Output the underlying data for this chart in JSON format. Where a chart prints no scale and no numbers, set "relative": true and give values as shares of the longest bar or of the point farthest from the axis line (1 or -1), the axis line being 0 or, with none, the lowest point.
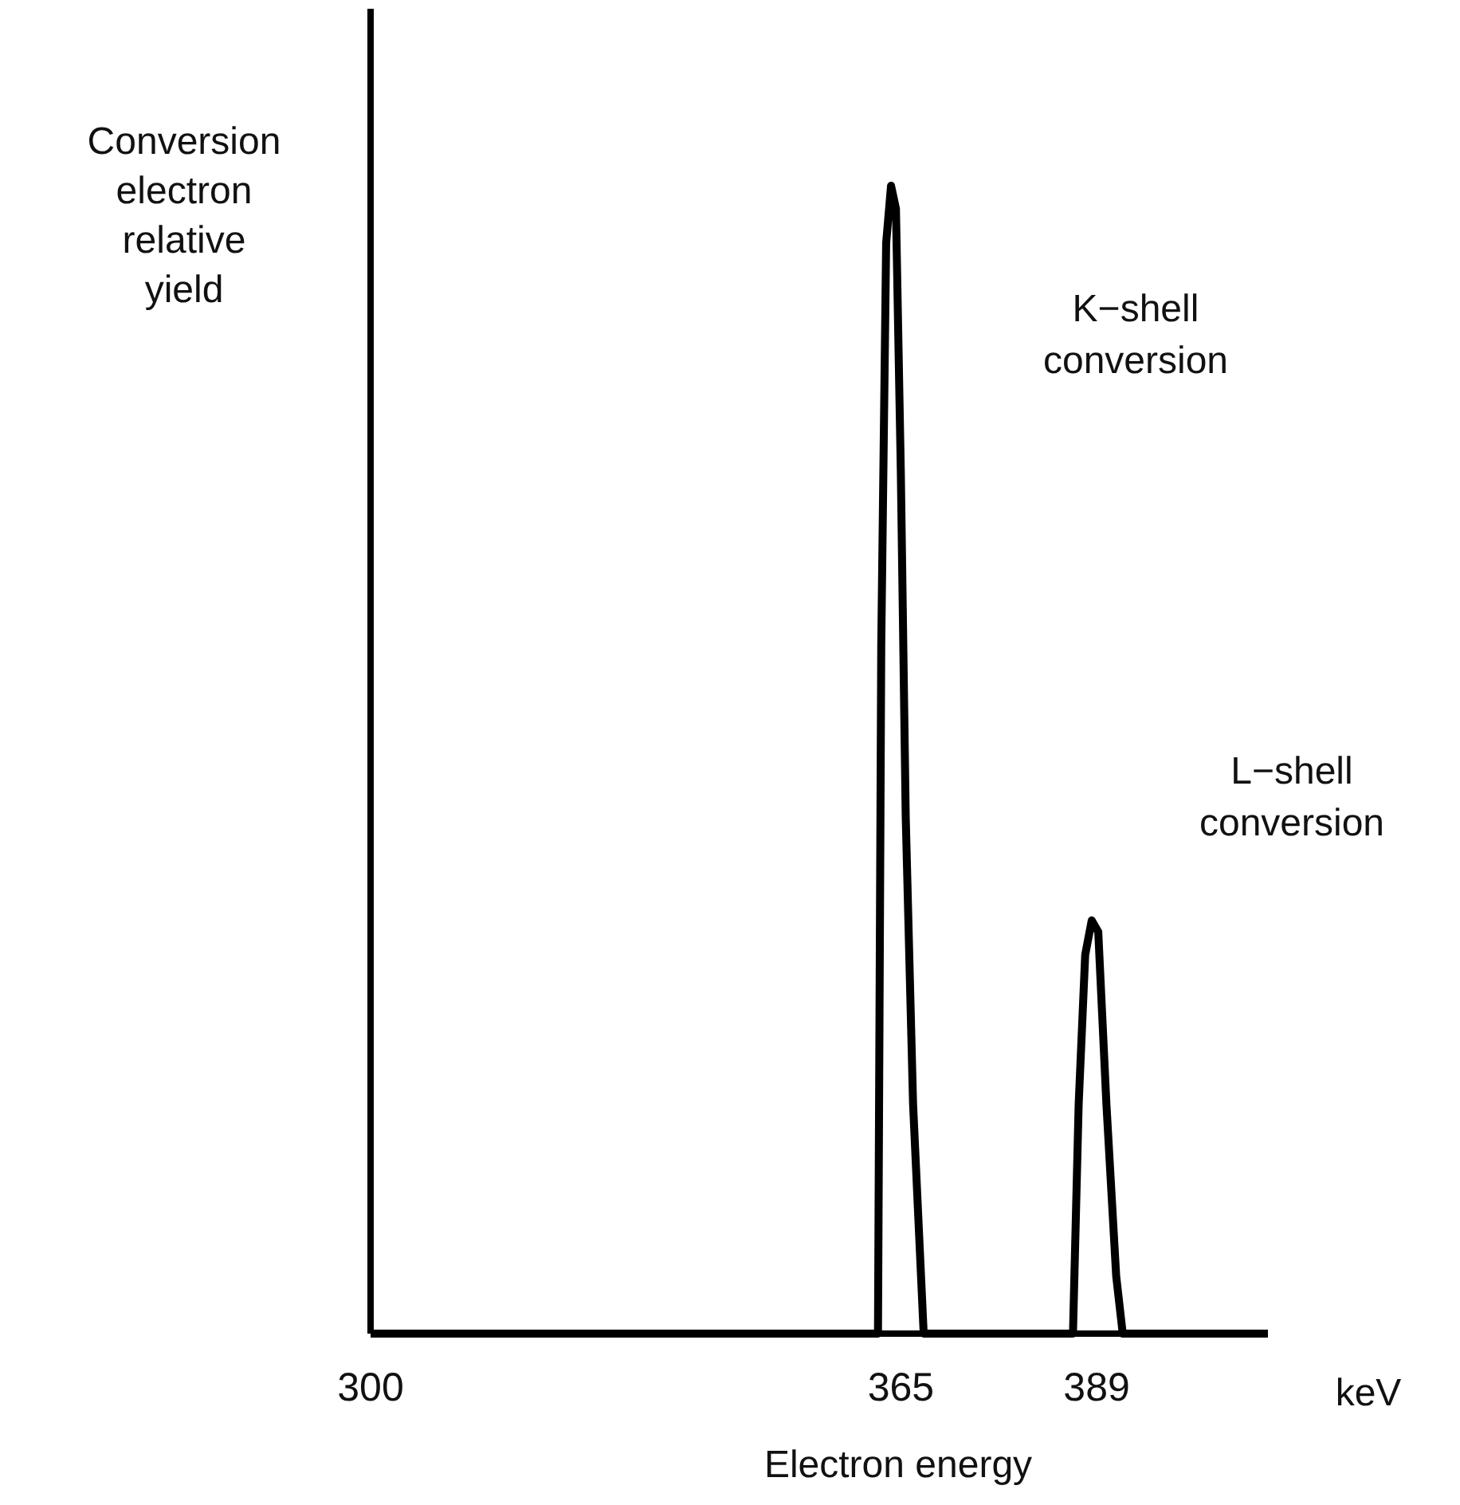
{
  "chart_data": {
    "type": "line",
    "relative": true,
    "xlabel": "Electron energy",
    "ylabel": "Conversion electron relative yield",
    "xlim": [
      300,
      410
    ],
    "xticks": [
      300,
      365,
      389
    ],
    "series": [
      {
        "color": "#000000",
        "x": [
          300,
          362.2,
          362.6,
          363.2,
          363.8,
          364.4,
          365.0,
          365.6,
          366.5,
          367.8,
          386.1,
          386.8,
          387.6,
          388.4,
          389.2,
          390.2,
          391.4,
          392.2,
          410
        ],
        "values": [
          0,
          0,
          0.6,
          0.95,
          1,
          0.98,
          0.75,
          0.45,
          0.2,
          0,
          0,
          0.2,
          0.33,
          0.36,
          0.35,
          0.2,
          0.05,
          0,
          0
        ]
      }
    ],
    "annotations": [
      "K−shell conversion",
      "L−shell conversion",
      "keV"
    ],
    "marker": "none",
    "line_style": "solid",
    "grid": false
  }
}
